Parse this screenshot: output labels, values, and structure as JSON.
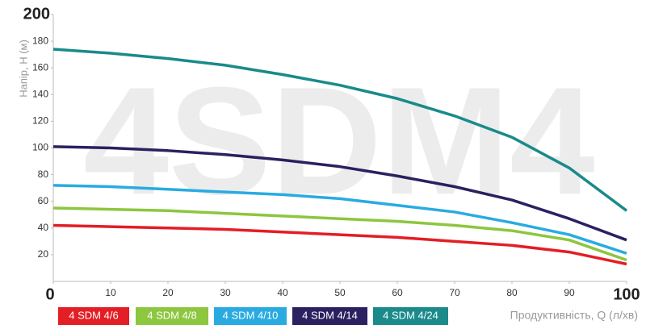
{
  "chart_data": {
    "type": "line",
    "watermark": "4SDM4",
    "y_label": "Напір, Н (м)",
    "x_label": "Продуктивність, Q (л/хв)",
    "x": [
      0,
      10,
      20,
      30,
      40,
      50,
      60,
      70,
      80,
      90,
      100
    ],
    "xlim": [
      0,
      100
    ],
    "xticks": [
      0,
      10,
      20,
      30,
      40,
      50,
      60,
      70,
      80,
      90,
      100
    ],
    "ylim": [
      0,
      200
    ],
    "yticks": [
      20,
      40,
      60,
      80,
      100,
      120,
      140,
      160,
      180,
      200
    ],
    "series": [
      {
        "name": "4 SDM 4/6",
        "color": "#e31e24",
        "values": [
          42,
          41,
          40,
          39,
          37,
          35,
          33,
          30,
          27,
          22,
          13
        ]
      },
      {
        "name": "4 SDM 4/8",
        "color": "#8dc63f",
        "values": [
          55,
          54,
          53,
          51,
          49,
          47,
          45,
          42,
          38,
          31,
          16
        ]
      },
      {
        "name": "4 SDM 4/10",
        "color": "#29abe2",
        "values": [
          72,
          71,
          69,
          67,
          65,
          62,
          57,
          52,
          44,
          35,
          21
        ]
      },
      {
        "name": "4 SDM 4/14",
        "color": "#2b2060",
        "values": [
          101,
          100,
          98,
          95,
          91,
          86,
          79,
          71,
          61,
          47,
          31
        ]
      },
      {
        "name": "4 SDM 4/24",
        "color": "#1a8a8a",
        "values": [
          174,
          171,
          167,
          162,
          155,
          147,
          137,
          124,
          108,
          85,
          53
        ]
      }
    ]
  }
}
